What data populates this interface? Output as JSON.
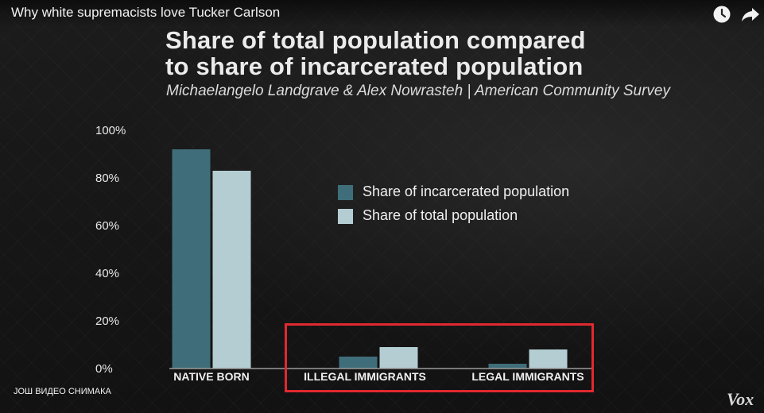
{
  "video": {
    "title": "Why white supremacists love Tucker Carlson",
    "more_videos": "ЈОШ ВИДЕО СНИМАКА",
    "brand": "Vox",
    "icons": [
      "watch-later-icon",
      "share-icon"
    ]
  },
  "chart_data": {
    "type": "bar",
    "title_line1": "Share of total population compared",
    "title_line2": "to share of incarcerated population",
    "subtitle": "Michaelangelo Landgrave & Alex Nowrasteh | American Community Survey",
    "categories": [
      "NATIVE BORN",
      "ILLEGAL IMMIGRANTS",
      "LEGAL IMMIGRANTS"
    ],
    "series": [
      {
        "name": "Share of incarcerated population",
        "values": [
          92,
          5,
          2
        ],
        "color": "#3f6e7a"
      },
      {
        "name": "Share of total population",
        "values": [
          83,
          9,
          8
        ],
        "color": "#b3cdd2"
      }
    ],
    "yticks": [
      "0%",
      "20%",
      "40%",
      "60%",
      "80%",
      "100%"
    ],
    "ylim": [
      0,
      100
    ],
    "grid": false,
    "legend_position": "center-right",
    "highlight_color": "#e0292f",
    "baseline_color": "#9a9a9a"
  }
}
